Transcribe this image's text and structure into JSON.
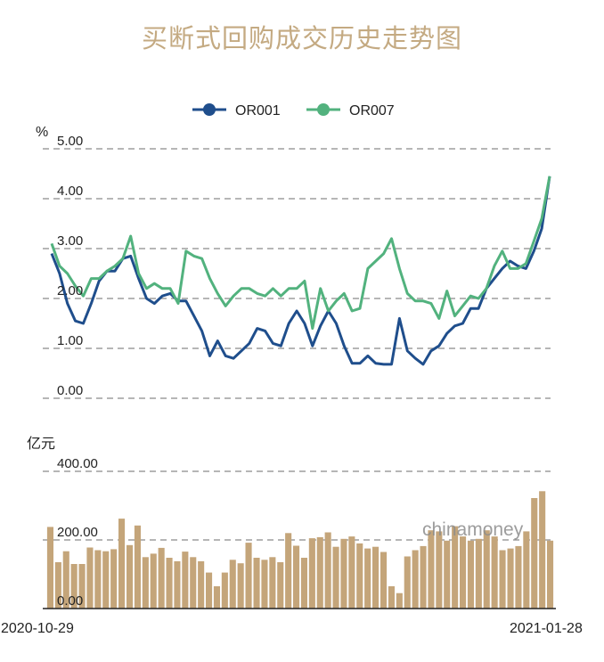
{
  "title": "买断式回购成交历史走势图",
  "watermark": "chinamoney",
  "legend": [
    {
      "name": "OR001",
      "color": "#1f4e8c"
    },
    {
      "name": "OR007",
      "color": "#52b27e"
    }
  ],
  "rate_unit": "%",
  "volume_unit": "亿元",
  "colors": {
    "bar": "#c4a57a",
    "grid": "#8a8a8a"
  },
  "chart_data": [
    {
      "type": "line",
      "x_start_label": "2020-10-29",
      "x_end_label": "2021-01-28",
      "ylabel": "%",
      "ylim": [
        0,
        5
      ],
      "yticks": [
        "0.00",
        "1.00",
        "2.00",
        "3.00",
        "4.00",
        "5.00"
      ],
      "grid": true,
      "legend_position": "top-center",
      "series": [
        {
          "name": "OR001",
          "values": [
            2.9,
            2.5,
            1.9,
            1.55,
            1.5,
            1.9,
            2.35,
            2.55,
            2.55,
            2.8,
            2.85,
            2.4,
            2.0,
            1.9,
            2.05,
            2.1,
            1.95,
            1.95,
            1.65,
            1.35,
            0.85,
            1.15,
            0.85,
            0.8,
            0.95,
            1.1,
            1.4,
            1.35,
            1.1,
            1.05,
            1.5,
            1.75,
            1.5,
            1.05,
            1.45,
            1.75,
            1.5,
            1.05,
            0.7,
            0.7,
            0.85,
            0.7,
            0.68,
            0.68,
            1.6,
            0.95,
            0.8,
            0.68,
            0.95,
            1.05,
            1.3,
            1.45,
            1.5,
            1.8,
            1.8,
            2.2,
            2.4,
            2.6,
            2.75,
            2.65,
            2.6,
            2.95,
            3.4,
            4.45
          ]
        },
        {
          "name": "OR007",
          "values": [
            3.1,
            2.65,
            2.5,
            2.25,
            2.05,
            2.4,
            2.4,
            2.55,
            2.65,
            2.8,
            3.25,
            2.5,
            2.2,
            2.3,
            2.2,
            2.2,
            1.9,
            2.95,
            2.85,
            2.8,
            2.4,
            2.1,
            1.85,
            2.05,
            2.2,
            2.2,
            2.1,
            2.05,
            2.2,
            2.05,
            2.2,
            2.2,
            2.35,
            1.4,
            2.2,
            1.75,
            1.95,
            2.1,
            1.75,
            1.8,
            2.6,
            2.75,
            2.9,
            3.2,
            2.6,
            2.1,
            1.95,
            1.95,
            1.9,
            1.6,
            2.15,
            1.65,
            1.85,
            2.05,
            2.0,
            2.2,
            2.65,
            2.95,
            2.6,
            2.6,
            2.7,
            3.15,
            3.6,
            4.45
          ]
        }
      ]
    },
    {
      "type": "bar",
      "ylabel": "亿元",
      "ylim": [
        0,
        400
      ],
      "yticks": [
        "0.00",
        "200.00",
        "400.00"
      ],
      "grid": true,
      "series": [
        {
          "values": [
            238,
            135,
            167,
            130,
            130,
            178,
            170,
            167,
            173,
            262,
            185,
            242,
            150,
            160,
            177,
            148,
            138,
            166,
            150,
            138,
            105,
            65,
            105,
            142,
            132,
            192,
            148,
            142,
            150,
            135,
            220,
            183,
            148,
            205,
            208,
            222,
            180,
            203,
            210,
            190,
            175,
            180,
            165,
            65,
            45,
            152,
            170,
            182,
            228,
            225,
            198,
            240,
            210,
            198,
            203,
            228,
            210,
            170,
            175,
            182,
            225,
            322,
            342,
            198
          ]
        }
      ]
    }
  ]
}
